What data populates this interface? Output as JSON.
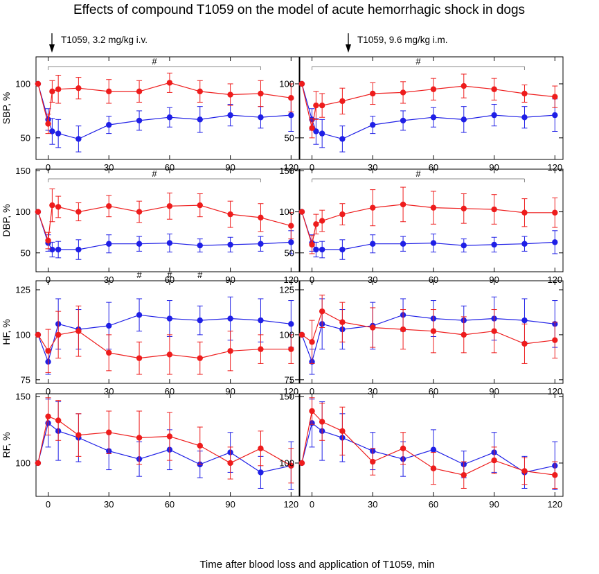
{
  "chart_data": {
    "title": "Effects of compound T1059 on the model of acute hemorrhagic shock in dogs",
    "xlabel": "Time after blood loss and application of T1059, min",
    "type": "line",
    "x_ticks": [
      0,
      30,
      60,
      90,
      120
    ],
    "xlim": [
      -6,
      124
    ],
    "colors": {
      "control": "#1f1fe6",
      "treated": "#ee1c1c",
      "bracket": "#8a8a8a"
    },
    "annotations": {
      "left": "T1059, 3.2 mg/kg i.v.",
      "right": "T1059, 9.6 mg/kg i.m.",
      "sig_mark": "#"
    },
    "panels": [
      {
        "id": "sbp-left",
        "ylabel": "SBP, %",
        "ylim": [
          30,
          125
        ],
        "yticks": [
          50,
          100
        ],
        "brackets": [
          [
            0,
            105
          ]
        ],
        "series": [
          {
            "name": "control",
            "x": [
              -5,
              0,
              2,
              5,
              15,
              30,
              45,
              60,
              75,
              90,
              105,
              120
            ],
            "y": [
              100,
              67,
              56,
              54,
              49,
              62,
              66,
              69,
              67,
              71,
              69,
              71
            ],
            "err": [
              0,
              10,
              12,
              13,
              12,
              8,
              9,
              9,
              12,
              10,
              10,
              15
            ]
          },
          {
            "name": "treated",
            "x": [
              -5,
              0,
              2,
              5,
              15,
              30,
              45,
              60,
              75,
              90,
              105,
              120
            ],
            "y": [
              100,
              63,
              93,
              95,
              96,
              93,
              93,
              101,
              93,
              90,
              91,
              87
            ],
            "err": [
              0,
              9,
              10,
              13,
              10,
              11,
              10,
              9,
              10,
              10,
              12,
              13
            ]
          }
        ]
      },
      {
        "id": "sbp-right",
        "ylabel": "",
        "ylim": [
          30,
          125
        ],
        "yticks": [
          50,
          100
        ],
        "brackets": [
          [
            0,
            105
          ]
        ],
        "series": [
          {
            "name": "control",
            "x": [
              -5,
              0,
              2,
              5,
              15,
              30,
              45,
              60,
              75,
              90,
              105,
              120
            ],
            "y": [
              100,
              67,
              56,
              54,
              49,
              62,
              66,
              69,
              67,
              71,
              69,
              71
            ],
            "err": [
              0,
              10,
              12,
              13,
              12,
              8,
              9,
              9,
              12,
              10,
              10,
              15
            ]
          },
          {
            "name": "treated",
            "x": [
              -5,
              0,
              2,
              5,
              15,
              30,
              45,
              60,
              75,
              90,
              105,
              120
            ],
            "y": [
              100,
              59,
              80,
              80,
              84,
              91,
              92,
              95,
              98,
              95,
              91,
              88
            ],
            "err": [
              0,
              9,
              13,
              11,
              12,
              10,
              10,
              10,
              11,
              10,
              8,
              10
            ]
          }
        ]
      },
      {
        "id": "dbp-left",
        "ylabel": "DBP, %",
        "ylim": [
          27,
          152
        ],
        "yticks": [
          50,
          100,
          150
        ],
        "brackets": [
          [
            0,
            105
          ]
        ],
        "series": [
          {
            "name": "control",
            "x": [
              -5,
              0,
              2,
              5,
              15,
              30,
              45,
              60,
              75,
              90,
              105,
              120
            ],
            "y": [
              100,
              62,
              54,
              54,
              54,
              61,
              61,
              62,
              59,
              60,
              61,
              63
            ],
            "err": [
              0,
              10,
              9,
              10,
              12,
              11,
              9,
              11,
              8,
              9,
              9,
              14
            ]
          },
          {
            "name": "treated",
            "x": [
              -5,
              0,
              2,
              5,
              15,
              30,
              45,
              60,
              75,
              90,
              105,
              120
            ],
            "y": [
              100,
              65,
              108,
              106,
              100,
              107,
              100,
              107,
              108,
              97,
              93,
              83
            ],
            "err": [
              0,
              10,
              20,
              13,
              11,
              13,
              13,
              16,
              14,
              16,
              17,
              16
            ]
          }
        ]
      },
      {
        "id": "dbp-right",
        "ylabel": "",
        "ylim": [
          27,
          152
        ],
        "yticks": [
          50,
          100,
          150
        ],
        "brackets": [
          [
            0,
            105
          ]
        ],
        "series": [
          {
            "name": "control",
            "x": [
              -5,
              0,
              2,
              5,
              15,
              30,
              45,
              60,
              75,
              90,
              105,
              120
            ],
            "y": [
              100,
              62,
              54,
              54,
              54,
              61,
              61,
              62,
              59,
              60,
              61,
              63
            ],
            "err": [
              0,
              10,
              9,
              10,
              12,
              11,
              9,
              11,
              8,
              9,
              9,
              14
            ]
          },
          {
            "name": "treated",
            "x": [
              -5,
              0,
              2,
              5,
              15,
              30,
              45,
              60,
              75,
              90,
              105,
              120
            ],
            "y": [
              100,
              60,
              85,
              89,
              97,
              105,
              109,
              105,
              104,
              103,
              99,
              99
            ],
            "err": [
              0,
              11,
              12,
              13,
              13,
              22,
              21,
              20,
              18,
              18,
              17,
              18
            ]
          }
        ]
      },
      {
        "id": "hf-left",
        "ylabel": "HF, %",
        "ylim": [
          73,
          130
        ],
        "yticks": [
          75,
          100,
          125
        ],
        "hash_at": [
          45,
          60,
          75
        ],
        "series": [
          {
            "name": "control",
            "x": [
              -5,
              0,
              5,
              15,
              30,
              45,
              60,
              75,
              90,
              105,
              120
            ],
            "y": [
              100,
              85,
              106,
              103,
              105,
              111,
              109,
              108,
              109,
              108,
              106
            ],
            "err": [
              0,
              7,
              14,
              11,
              13,
              9,
              10,
              8,
              12,
              12,
              13
            ]
          },
          {
            "name": "treated",
            "x": [
              -5,
              0,
              5,
              15,
              30,
              45,
              60,
              75,
              90,
              105,
              120
            ],
            "y": [
              100,
              91,
              100,
              102,
              90,
              87,
              89,
              87,
              91,
              92,
              92
            ],
            "err": [
              0,
              12,
              13,
              14,
              10,
              9,
              11,
              9,
              11,
              8,
              8
            ]
          }
        ]
      },
      {
        "id": "hf-right",
        "ylabel": "",
        "ylim": [
          73,
          130
        ],
        "yticks": [
          75,
          100,
          125
        ],
        "series": [
          {
            "name": "control",
            "x": [
              -5,
              0,
              5,
              15,
              30,
              45,
              60,
              75,
              90,
              105,
              120
            ],
            "y": [
              100,
              85,
              106,
              103,
              105,
              111,
              109,
              108,
              109,
              108,
              106
            ],
            "err": [
              0,
              7,
              14,
              11,
              13,
              9,
              10,
              8,
              12,
              12,
              13
            ]
          },
          {
            "name": "treated",
            "x": [
              -5,
              0,
              5,
              15,
              30,
              45,
              60,
              75,
              90,
              105,
              120
            ],
            "y": [
              100,
              96,
              113,
              107,
              104,
              103,
              102,
              100,
              102,
              95,
              97
            ],
            "err": [
              0,
              12,
              9,
              11,
              11,
              11,
              12,
              10,
              12,
              11,
              10
            ]
          }
        ]
      },
      {
        "id": "rf-left",
        "ylabel": "RF, %",
        "ylim": [
          75,
          152
        ],
        "yticks": [
          100,
          150
        ],
        "series": [
          {
            "name": "control",
            "x": [
              -5,
              0,
              5,
              15,
              30,
              45,
              60,
              75,
              90,
              105,
              120
            ],
            "y": [
              100,
              130,
              124,
              119,
              109,
              103,
              110,
              99,
              108,
              93,
              98
            ],
            "err": [
              0,
              18,
              22,
              18,
              14,
              13,
              15,
              10,
              15,
              12,
              18
            ]
          },
          {
            "name": "treated",
            "x": [
              -5,
              0,
              5,
              15,
              30,
              45,
              60,
              75,
              90,
              105,
              120
            ],
            "y": [
              100,
              135,
              132,
              121,
              123,
              119,
              120,
              113,
              100,
              111,
              98
            ],
            "err": [
              0,
              14,
              15,
              16,
              16,
              20,
              18,
              14,
              12,
              13,
              13
            ]
          }
        ]
      },
      {
        "id": "rf-right",
        "ylabel": "",
        "ylim": [
          75,
          152
        ],
        "yticks": [
          100,
          150
        ],
        "series": [
          {
            "name": "control",
            "x": [
              -5,
              0,
              5,
              15,
              30,
              45,
              60,
              75,
              90,
              105,
              120
            ],
            "y": [
              100,
              130,
              124,
              119,
              109,
              103,
              110,
              99,
              108,
              93,
              98
            ],
            "err": [
              0,
              18,
              22,
              18,
              14,
              13,
              15,
              10,
              15,
              12,
              18
            ]
          },
          {
            "name": "treated",
            "x": [
              -5,
              0,
              5,
              15,
              30,
              45,
              60,
              75,
              90,
              105,
              120
            ],
            "y": [
              100,
              139,
              131,
              124,
              101,
              111,
              96,
              91,
              102,
              94,
              91
            ],
            "err": [
              0,
              10,
              14,
              18,
              10,
              12,
              12,
              10,
              10,
              10,
              10
            ]
          }
        ]
      }
    ]
  }
}
